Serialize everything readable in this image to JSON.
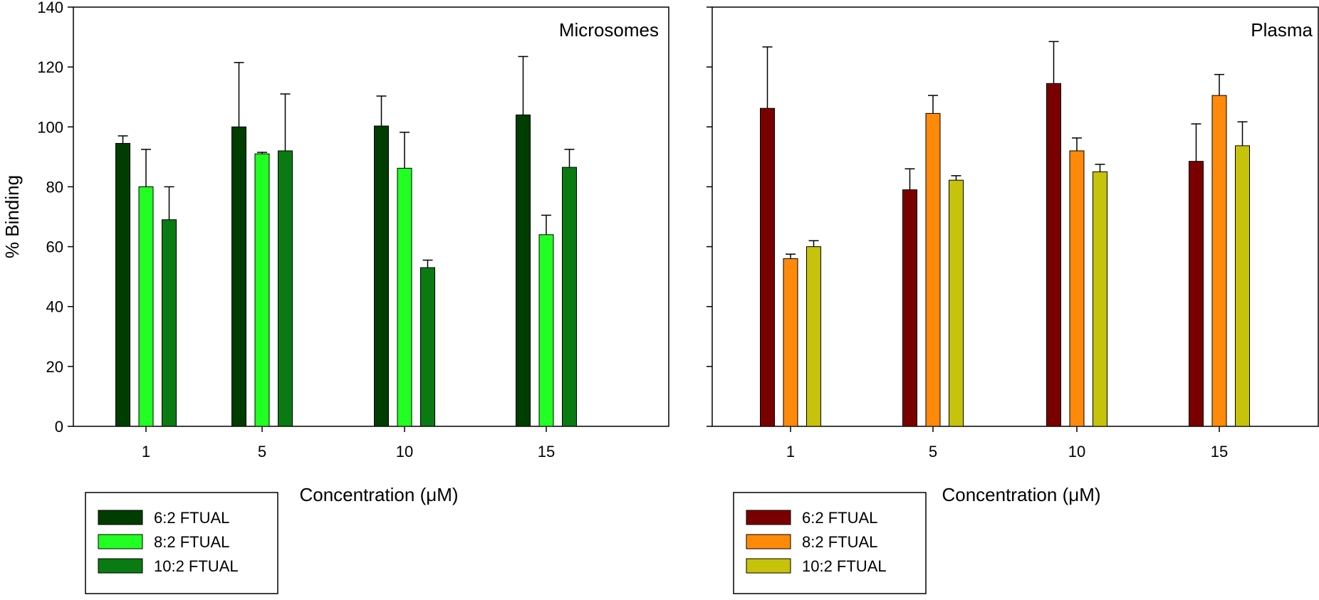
{
  "chart_data": [
    {
      "type": "bar",
      "title": "Microsomes",
      "xlabel": "Concentration (μM)",
      "ylabel": "% Binding",
      "ylim": [
        0,
        140
      ],
      "yticks": [
        0,
        20,
        40,
        60,
        80,
        100,
        120,
        140
      ],
      "categories": [
        "1",
        "5",
        "10",
        "15"
      ],
      "error_bars": "upper",
      "grid": false,
      "legend_position": "bottom-left",
      "series": [
        {
          "name": "6:2 FTUAL",
          "color": "#003d00",
          "values": [
            94.5,
            100,
            100.3,
            104
          ],
          "errors": [
            2.5,
            21.5,
            10,
            19.5
          ]
        },
        {
          "name": "8:2 FTUAL",
          "color": "#22ff22",
          "values": [
            80,
            91,
            86.2,
            64
          ],
          "errors": [
            12.5,
            0.5,
            12,
            6.5
          ]
        },
        {
          "name": "10:2 FTUAL",
          "color": "#0a7a12",
          "values": [
            69,
            92,
            53,
            86.5
          ],
          "errors": [
            11,
            19,
            2.5,
            6
          ]
        }
      ]
    },
    {
      "type": "bar",
      "title": "Plasma",
      "xlabel": "Concentration (μM)",
      "ylabel": "",
      "ylim": [
        0,
        140
      ],
      "yticks": [
        0,
        20,
        40,
        60,
        80,
        100,
        120,
        140
      ],
      "categories": [
        "1",
        "5",
        "10",
        "15"
      ],
      "error_bars": "upper",
      "grid": false,
      "legend_position": "bottom-left",
      "series": [
        {
          "name": "6:2 FTUAL",
          "color": "#7a0000",
          "values": [
            106.2,
            79,
            114.5,
            88.5
          ],
          "errors": [
            20.5,
            7,
            14,
            12.5
          ]
        },
        {
          "name": "8:2 FTUAL",
          "color": "#ff8a0a",
          "values": [
            56,
            104.5,
            92,
            110.5
          ],
          "errors": [
            1.5,
            6,
            4.3,
            7
          ]
        },
        {
          "name": "10:2 FTUAL",
          "color": "#c7c20a",
          "values": [
            60,
            82.2,
            85,
            93.7
          ],
          "errors": [
            2,
            1.5,
            2.5,
            8
          ]
        }
      ]
    }
  ]
}
